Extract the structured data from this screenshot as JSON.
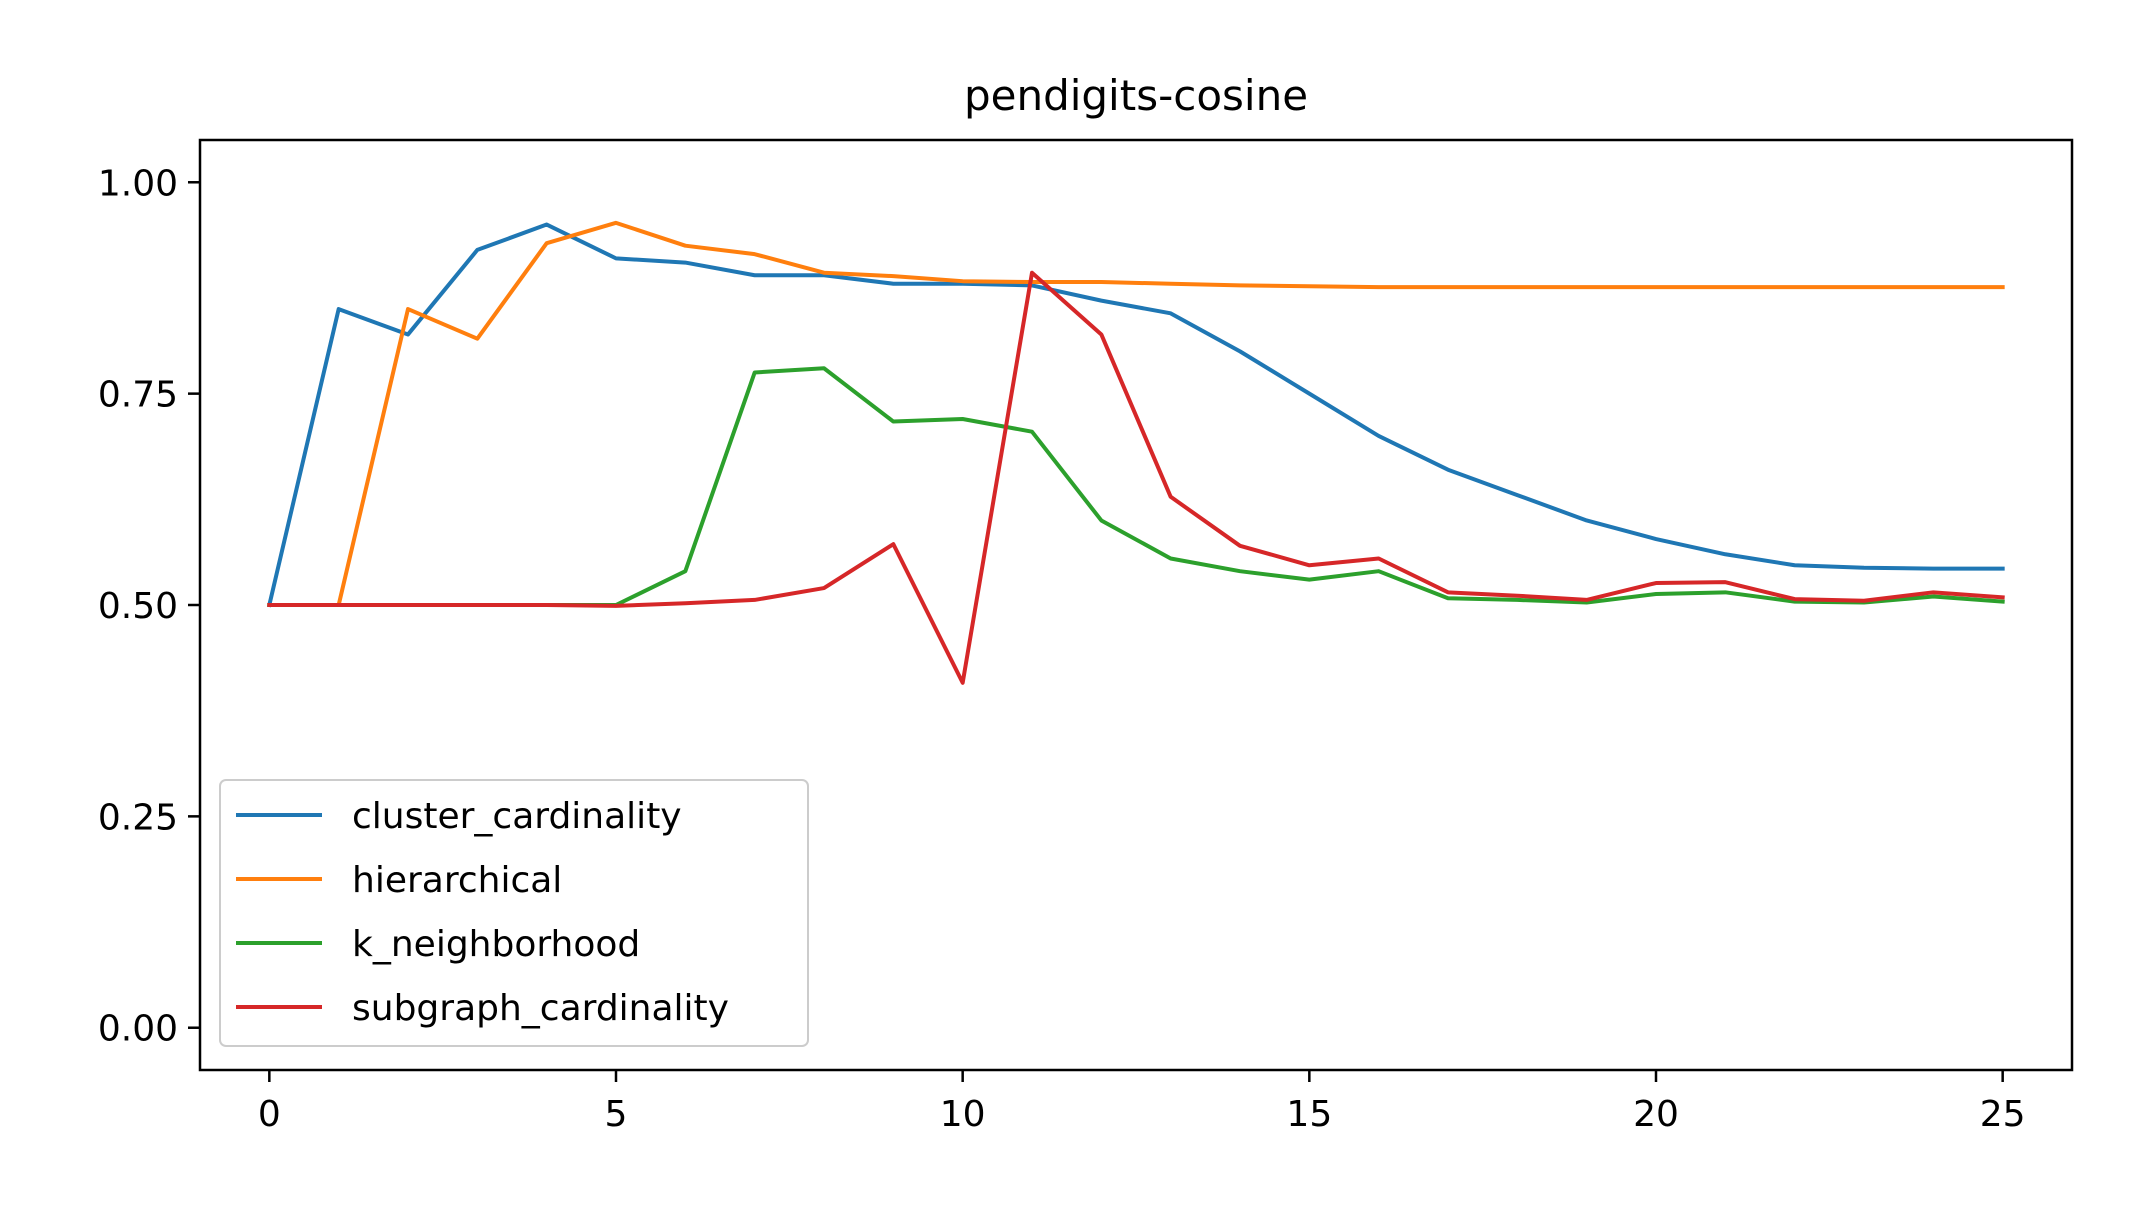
{
  "chart_data": {
    "type": "line",
    "title": "pendigits-cosine",
    "xlabel": "",
    "ylabel": "",
    "xlim": [
      -1,
      26
    ],
    "ylim": [
      -0.05,
      1.05
    ],
    "x_ticks": [
      0,
      5,
      10,
      15,
      20,
      25
    ],
    "x_tick_labels": [
      "0",
      "5",
      "10",
      "15",
      "20",
      "25"
    ],
    "y_ticks": [
      0.0,
      0.25,
      0.5,
      0.75,
      1.0
    ],
    "y_tick_labels": [
      "0.00",
      "0.25",
      "0.50",
      "0.75",
      "1.00"
    ],
    "grid": false,
    "legend_position": "lower-left",
    "x": [
      0,
      1,
      2,
      3,
      4,
      5,
      6,
      7,
      8,
      9,
      10,
      11,
      12,
      13,
      14,
      15,
      16,
      17,
      18,
      19,
      20,
      21,
      22,
      23,
      24,
      25
    ],
    "series": [
      {
        "name": "cluster_cardinality",
        "color": "#1f77b4",
        "values": [
          0.5,
          0.85,
          0.82,
          0.92,
          0.95,
          0.91,
          0.905,
          0.89,
          0.89,
          0.88,
          0.88,
          0.878,
          0.86,
          0.845,
          0.8,
          0.75,
          0.7,
          0.66,
          0.63,
          0.6,
          0.578,
          0.56,
          0.547,
          0.544,
          0.543,
          0.543
        ]
      },
      {
        "name": "hierarchical",
        "color": "#ff7f0e",
        "values": [
          0.5,
          0.5,
          0.85,
          0.815,
          0.928,
          0.952,
          0.925,
          0.915,
          0.893,
          0.889,
          0.883,
          0.882,
          0.882,
          0.88,
          0.878,
          0.877,
          0.876,
          0.876,
          0.876,
          0.876,
          0.876,
          0.876,
          0.876,
          0.876,
          0.876,
          0.876
        ]
      },
      {
        "name": "k_neighborhood",
        "color": "#2ca02c",
        "values": [
          0.5,
          0.5,
          0.5,
          0.5,
          0.5,
          0.5,
          0.54,
          0.775,
          0.78,
          0.717,
          0.72,
          0.705,
          0.6,
          0.555,
          0.54,
          0.53,
          0.54,
          0.508,
          0.506,
          0.503,
          0.513,
          0.515,
          0.504,
          0.503,
          0.51,
          0.504
        ]
      },
      {
        "name": "subgraph_cardinality",
        "color": "#d62728",
        "values": [
          0.5,
          0.5,
          0.5,
          0.5,
          0.5,
          0.499,
          0.502,
          0.506,
          0.52,
          0.572,
          0.408,
          0.893,
          0.82,
          0.628,
          0.57,
          0.547,
          0.555,
          0.515,
          0.511,
          0.506,
          0.526,
          0.527,
          0.507,
          0.505,
          0.515,
          0.509
        ]
      }
    ]
  }
}
